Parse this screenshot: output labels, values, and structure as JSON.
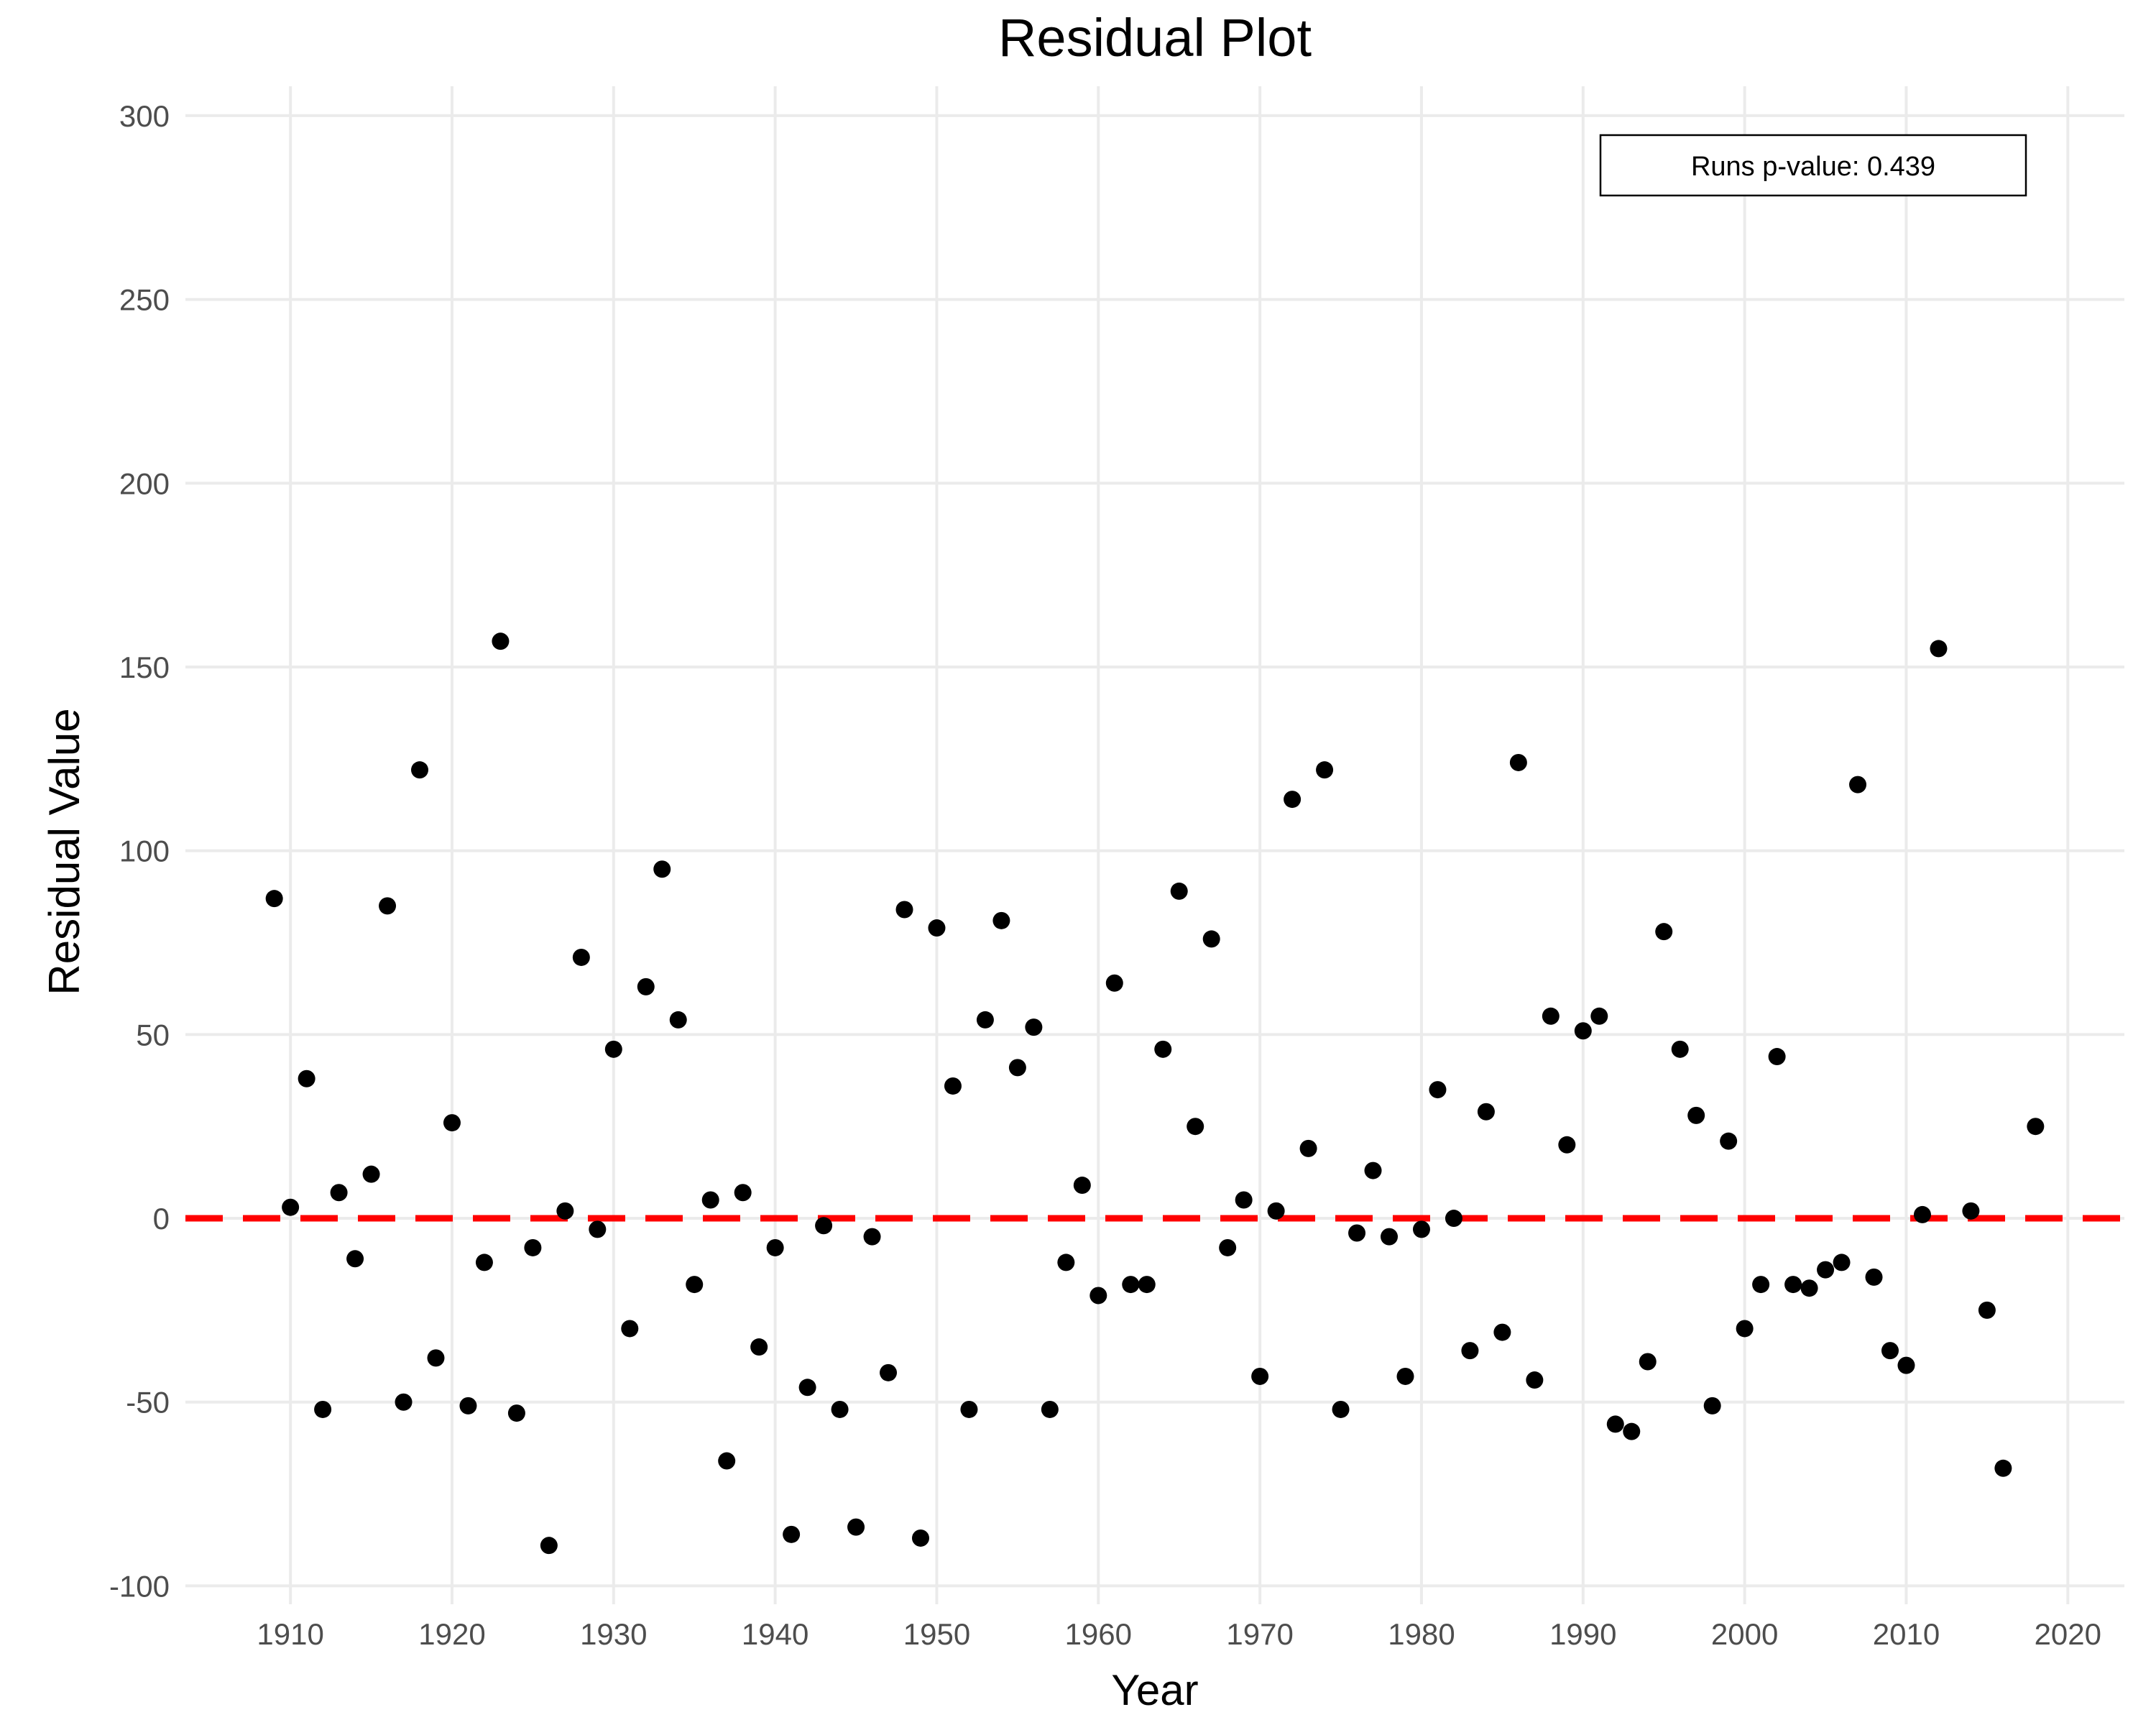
{
  "chart_data": {
    "type": "scatter",
    "title": "Residual Plot",
    "xlabel": "Year",
    "ylabel": "Residual Value",
    "xlim": [
      1903.5,
      2023.5
    ],
    "ylim": [
      -105,
      308
    ],
    "x_ticks": [
      1910,
      1920,
      1930,
      1940,
      1950,
      1960,
      1970,
      1980,
      1990,
      2000,
      2010,
      2020
    ],
    "y_ticks": [
      -100,
      -50,
      0,
      50,
      100,
      150,
      200,
      250,
      300
    ],
    "reference_line": {
      "y": 0,
      "color": "#ff0000",
      "style": "dashed"
    },
    "annotation": "Runs p-value: 0.439",
    "grid": true,
    "point_color": "#000000",
    "series": [
      {
        "x": [
          1909,
          1910,
          1911,
          1912,
          1913,
          1914,
          1915,
          1916,
          1917,
          1918,
          1919,
          1920,
          1921,
          1922,
          1923,
          1924,
          1925,
          1926,
          1927,
          1928,
          1929,
          1930,
          1931,
          1932,
          1933,
          1934,
          1935,
          1936,
          1937,
          1938,
          1939,
          1940,
          1941,
          1942,
          1943,
          1944,
          1945,
          1946,
          1947,
          1948,
          1949,
          1950,
          1951,
          1952,
          1953,
          1954,
          1955,
          1956,
          1957,
          1958,
          1959,
          1960,
          1961,
          1962,
          1963,
          1964,
          1965,
          1966,
          1967,
          1968,
          1969,
          1970,
          1971,
          1972,
          1973,
          1974,
          1975,
          1976,
          1977,
          1978,
          1979,
          1980,
          1981,
          1982,
          1983,
          1984,
          1985,
          1986,
          1987,
          1988,
          1989,
          1990,
          1991,
          1992,
          1993,
          1994,
          1995,
          1996,
          1997,
          1998,
          1999,
          2000,
          2001,
          2002,
          2003,
          2004,
          2005,
          2006,
          2007,
          2008,
          2009,
          2010,
          2011,
          2012,
          2014,
          2015,
          2016,
          2018
        ],
        "y": [
          87,
          3,
          38,
          -52,
          7,
          -11,
          12,
          85,
          -50,
          122,
          -38,
          26,
          -51,
          -12,
          157,
          -53,
          -8,
          -89,
          2,
          71,
          -3,
          46,
          -30,
          63,
          95,
          54,
          -18,
          5,
          -66,
          7,
          -35,
          -8,
          -86,
          -46,
          -2,
          -52,
          -84,
          -5,
          -42,
          84,
          -87,
          79,
          36,
          -52,
          54,
          81,
          41,
          52,
          -52,
          -12,
          9,
          -21,
          64,
          -18,
          -18,
          46,
          89,
          25,
          76,
          -8,
          5,
          -43,
          2,
          114,
          19,
          122,
          -52,
          -4,
          13,
          -5,
          -43,
          -3,
          35,
          0,
          -36,
          29,
          -31,
          124,
          -44,
          55,
          20,
          51,
          55,
          -56,
          -58,
          -39,
          78,
          46,
          28,
          -51,
          21,
          -30,
          -18,
          44,
          -18,
          -19,
          -14,
          -12,
          118,
          -16,
          -36,
          -40,
          1,
          155,
          2,
          -25,
          -68,
          25
        ]
      }
    ]
  }
}
